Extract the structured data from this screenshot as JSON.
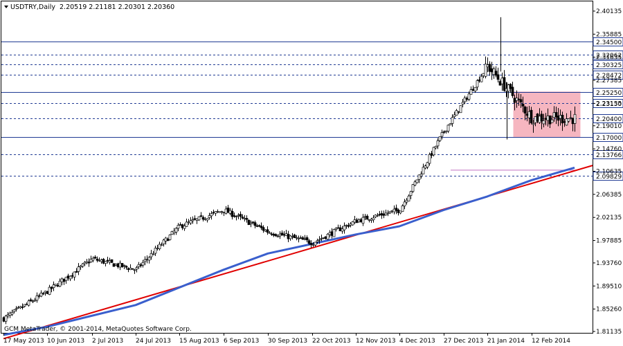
{
  "header": {
    "symbol_timeframe": "USDTRY,Daily",
    "ohlc": "2.20519 2.21181 2.20301 2.20360",
    "copyright": "GCM MetaTrader, © 2001-2014, MetaQuotes Software Corp."
  },
  "colors": {
    "background": "#ffffff",
    "candles": "#000000",
    "level_lines": "#1f3a93",
    "trend_line": "#e00000",
    "moving_average": "#3a5fcd",
    "range_box": "#f6b6c0",
    "marker_line": "#c070c0",
    "price_highlight": "#ffffff"
  },
  "chart_data": {
    "type": "candlestick",
    "title": "USDTRY,Daily",
    "y_axis_ticks": [
      "2.40135",
      "2.35885",
      "2.31635",
      "2.27385",
      "2.23135",
      "2.19010",
      "2.14760",
      "2.10635",
      "2.06385",
      "2.02135",
      "1.97885",
      "1.93760",
      "1.89510",
      "1.85260",
      "1.81135"
    ],
    "ylim": [
      1.81135,
      2.40135
    ],
    "x_axis_ticks": [
      "17 May 2013",
      "10 Jun 2013",
      "2 Jul 2013",
      "24 Jul 2013",
      "15 Aug 2013",
      "6 Sep 2013",
      "30 Sep 2013",
      "22 Oct 2013",
      "12 Nov 2013",
      "4 Dec 2013",
      "27 Dec 2013",
      "21 Jan 2014",
      "12 Feb 2014"
    ],
    "horizontal_levels": [
      {
        "label": "2.34500",
        "value": 2.345,
        "style": "solid"
      },
      {
        "label": "2.32062",
        "value": 2.32062,
        "style": "dashed"
      },
      {
        "label": "2.30325",
        "value": 2.30325,
        "style": "dashed"
      },
      {
        "label": "2.28472",
        "value": 2.28472,
        "style": "dashed"
      },
      {
        "label": "2.25250",
        "value": 2.2525,
        "style": "solid"
      },
      {
        "label": "2.23150",
        "value": 2.2315,
        "style": "dashed"
      },
      {
        "label": "2.20400",
        "value": 2.204,
        "style": "dashed"
      },
      {
        "label": "2.17000",
        "value": 2.17,
        "style": "solid"
      },
      {
        "label": "2.13766",
        "value": 2.13766,
        "style": "dashed"
      },
      {
        "label": "2.09829",
        "value": 2.09829,
        "style": "dashed"
      }
    ],
    "current_price_label": "2.20360",
    "key_points": [
      {
        "label": "17 May 2013",
        "close": 1.835
      },
      {
        "label": "10 Jun 2013",
        "close": 1.885
      },
      {
        "label": "2 Jul 2013",
        "close": 1.945
      },
      {
        "label": "24 Jul 2013",
        "close": 1.925
      },
      {
        "label": "15 Aug 2013",
        "close": 2.005
      },
      {
        "label": "6 Sep 2013",
        "close": 2.035
      },
      {
        "label": "30 Sep 2013",
        "close": 1.995
      },
      {
        "label": "22 Oct 2013",
        "close": 1.975
      },
      {
        "label": "12 Nov 2013",
        "close": 2.015
      },
      {
        "label": "4 Dec 2013",
        "close": 2.035
      },
      {
        "label": "27 Dec 2013",
        "close": 2.18
      },
      {
        "label": "21 Jan 2014",
        "close": 2.3
      },
      {
        "label": "12 Feb 2014",
        "close": 2.205
      }
    ],
    "trend_line": [
      {
        "date": "17 May 2013",
        "value": 1.798
      },
      {
        "date": "right edge",
        "value": 2.117
      }
    ],
    "moving_average": [
      {
        "date": "17 May 2013",
        "value": 1.805
      },
      {
        "date": "10 Jun 2013",
        "value": 1.82
      },
      {
        "date": "24 Jul 2013",
        "value": 1.86
      },
      {
        "date": "6 Sep 2013",
        "value": 1.925
      },
      {
        "date": "30 Sep 2013",
        "value": 1.955
      },
      {
        "date": "12 Nov 2013",
        "value": 1.99
      },
      {
        "date": "4 Dec 2013",
        "value": 2.005
      },
      {
        "date": "27 Dec 2013",
        "value": 2.035
      },
      {
        "date": "21 Jan 2014",
        "value": 2.06
      },
      {
        "date": "12 Feb 2014",
        "value": 2.09
      },
      {
        "date": "last",
        "value": 2.113
      }
    ],
    "range_box": {
      "from": "21 Jan 2014",
      "to": "last",
      "top": 2.2525,
      "bottom": 2.17
    },
    "marker_line": {
      "from": "27 Dec 2013",
      "to": "last",
      "value": 2.1085
    },
    "legend": "none",
    "grid": false
  }
}
